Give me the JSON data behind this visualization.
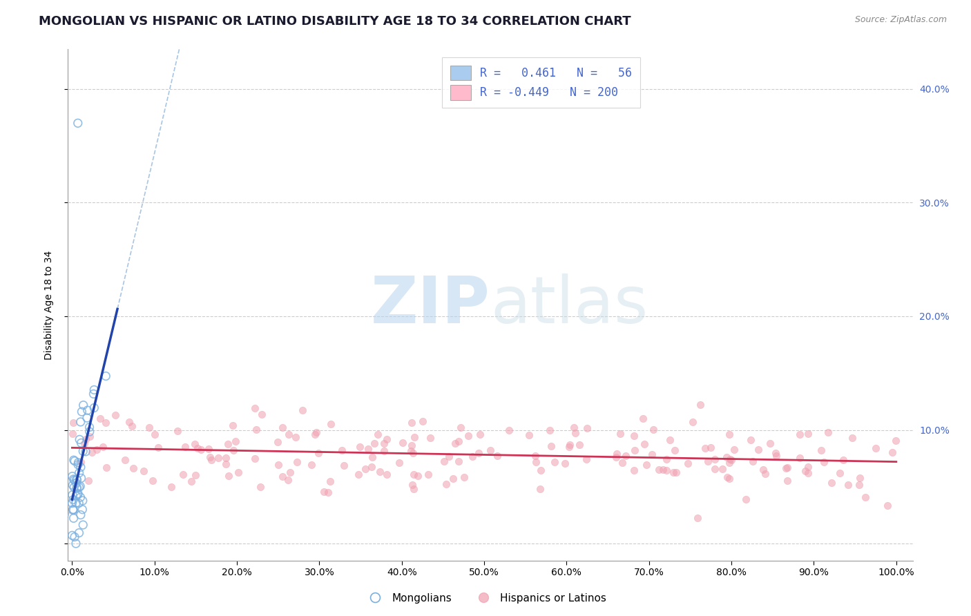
{
  "title": "MONGOLIAN VS HISPANIC OR LATINO DISABILITY AGE 18 TO 34 CORRELATION CHART",
  "source": "Source: ZipAtlas.com",
  "ylabel": "Disability Age 18 to 34",
  "xlabel": "",
  "xlim": [
    -0.005,
    1.02
  ],
  "ylim": [
    -0.015,
    0.435
  ],
  "xticks": [
    0.0,
    0.1,
    0.2,
    0.3,
    0.4,
    0.5,
    0.6,
    0.7,
    0.8,
    0.9,
    1.0
  ],
  "xticklabels": [
    "0.0%",
    "10.0%",
    "20.0%",
    "30.0%",
    "40.0%",
    "50.0%",
    "60.0%",
    "70.0%",
    "80.0%",
    "90.0%",
    "100.0%"
  ],
  "yticks": [
    0.0,
    0.1,
    0.2,
    0.3,
    0.4
  ],
  "yticklabels_right": [
    "",
    "10.0%",
    "20.0%",
    "30.0%",
    "40.0%"
  ],
  "grid_color": "#cccccc",
  "background_color": "#ffffff",
  "mongolian_color": "#7ab0e0",
  "hispanic_color": "#f0a0b0",
  "mongolian_line_color": "#2244aa",
  "hispanic_line_color": "#cc3355",
  "mongolian_dash_color": "#99bbdd",
  "R_mongolian": 0.461,
  "N_mongolian": 56,
  "R_hispanic": -0.449,
  "N_hispanic": 200,
  "legend_label_mongolian": "Mongolians",
  "legend_label_hispanic": "Hispanics or Latinos",
  "watermark_zip": "ZIP",
  "watermark_atlas": "atlas",
  "title_fontsize": 13,
  "label_fontsize": 10,
  "tick_fontsize": 10,
  "legend_box_color": "#aaccee",
  "legend_box_color2": "#ffbbcc"
}
